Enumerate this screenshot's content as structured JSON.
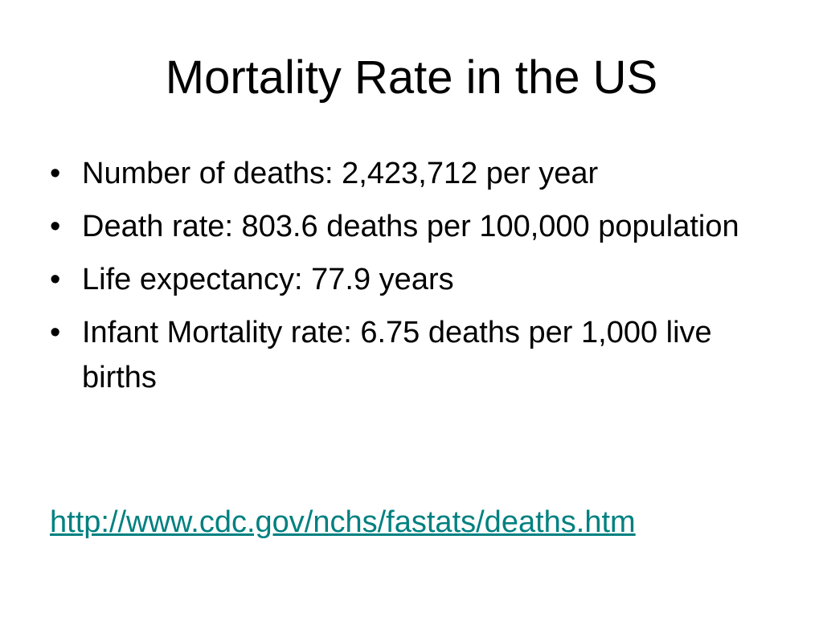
{
  "slide": {
    "title": "Mortality Rate in the US",
    "bullet_glyph": "•",
    "bullets": [
      "Number of deaths: 2,423,712 per year",
      "Death rate: 803.6 deaths per 100,000 population",
      "Life expectancy: 77.9 years",
      "Infant Mortality rate: 6.75 deaths per 1,000 live births"
    ],
    "link": {
      "text": "http://www.cdc.gov/nchs/fastats/deaths.htm",
      "color": "#008080"
    }
  }
}
